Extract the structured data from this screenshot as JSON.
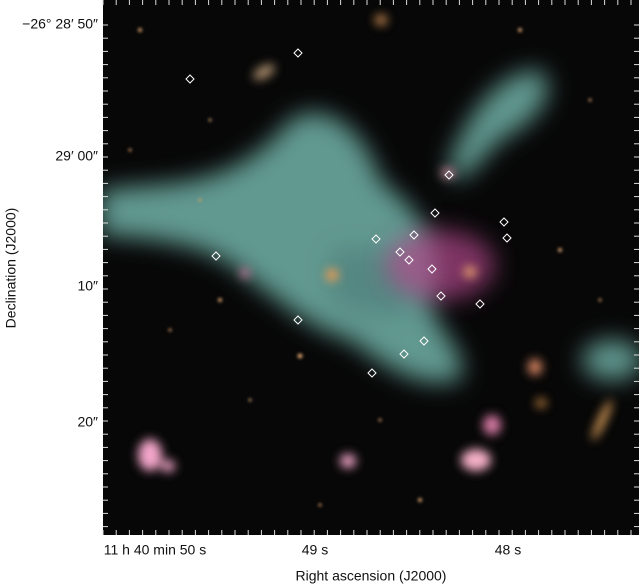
{
  "axes": {
    "y_title": "Declination (J2000)",
    "x_title": "Right ascension (J2000)",
    "y_ticks": [
      "−26° 28′ 50″",
      "29′ 00″",
      "10″",
      "20″"
    ],
    "x_ticks": [
      "11 h 40 min 50 s",
      "49 s",
      "48 s"
    ]
  }
}
